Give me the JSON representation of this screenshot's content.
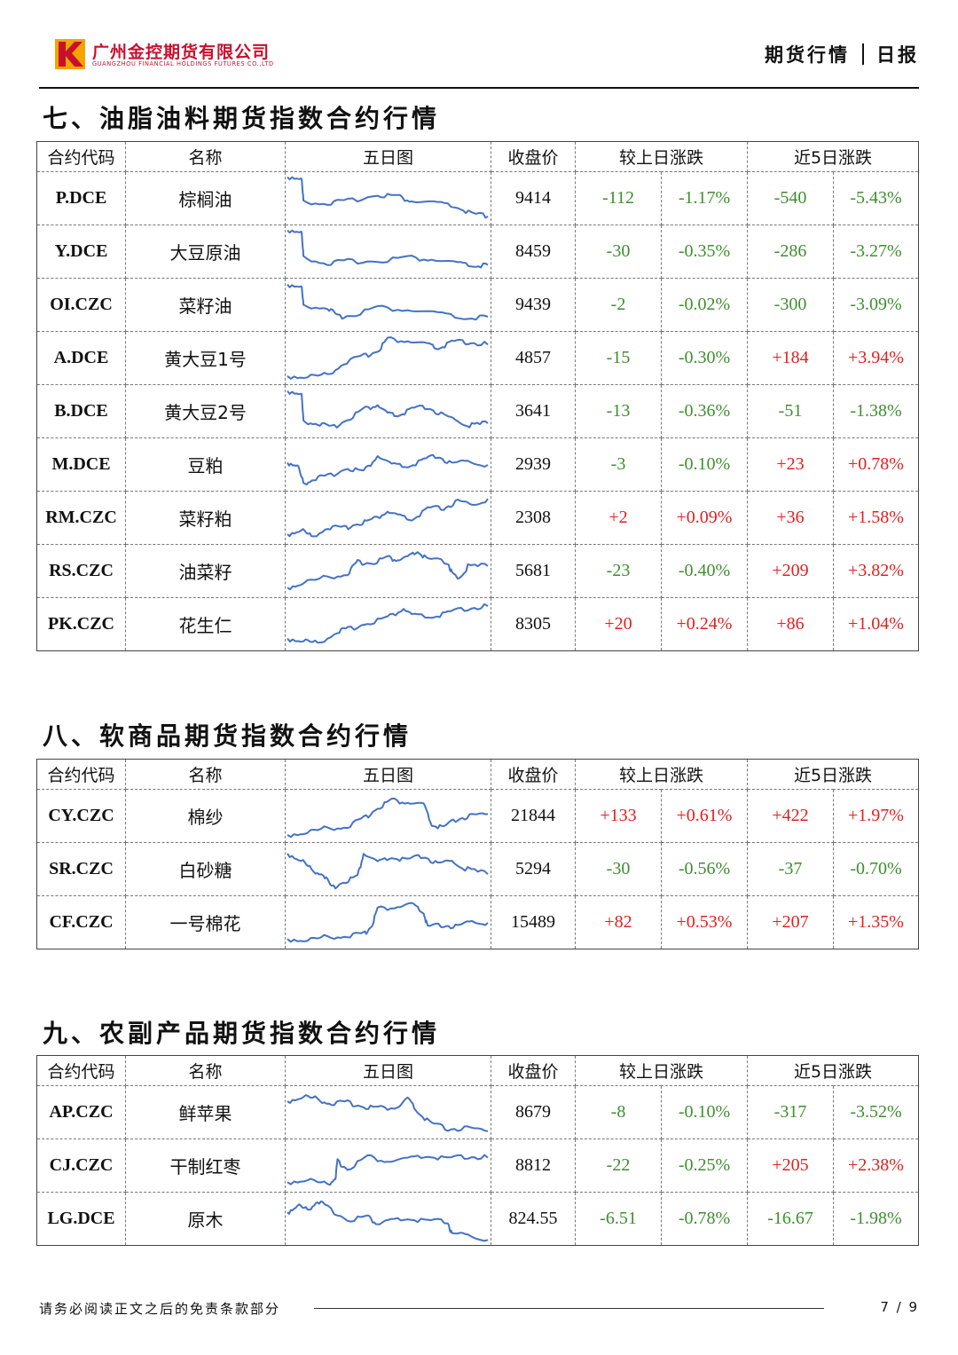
{
  "header": {
    "logo_letter": "K",
    "company_cn": "广州金控期货有限公司",
    "company_en": "GUANGZHOU FINANCIAL HOLDINGS FUTURES CO.,LTD",
    "doc_type": "期货行情",
    "doc_sub": "日报",
    "brand_color": "#c8102e"
  },
  "columns": {
    "code": "合约代码",
    "name": "名称",
    "chart": "五日图",
    "close": "收盘价",
    "daily": "较上日涨跌",
    "five_day": "近5日涨跌"
  },
  "colors": {
    "up": "#e02020",
    "down": "#3e8e2e",
    "sparkline": "#4472c4"
  },
  "sections": [
    {
      "title": "七、油脂油料期货指数合约行情",
      "rows": [
        {
          "code": "P.DCE",
          "name": "棕榈油",
          "close": "9414",
          "d_chg": "-112",
          "d_pct": "-1.17%",
          "w_chg": "-540",
          "w_pct": "-5.43%"
        },
        {
          "code": "Y.DCE",
          "name": "大豆原油",
          "close": "8459",
          "d_chg": "-30",
          "d_pct": "-0.35%",
          "w_chg": "-286",
          "w_pct": "-3.27%"
        },
        {
          "code": "OI.CZC",
          "name": "菜籽油",
          "close": "9439",
          "d_chg": "-2",
          "d_pct": "-0.02%",
          "w_chg": "-300",
          "w_pct": "-3.09%"
        },
        {
          "code": "A.DCE",
          "name": "黄大豆1号",
          "close": "4857",
          "d_chg": "-15",
          "d_pct": "-0.30%",
          "w_chg": "+184",
          "w_pct": "+3.94%"
        },
        {
          "code": "B.DCE",
          "name": "黄大豆2号",
          "close": "3641",
          "d_chg": "-13",
          "d_pct": "-0.36%",
          "w_chg": "-51",
          "w_pct": "-1.38%"
        },
        {
          "code": "M.DCE",
          "name": "豆粕",
          "close": "2939",
          "d_chg": "-3",
          "d_pct": "-0.10%",
          "w_chg": "+23",
          "w_pct": "+0.78%"
        },
        {
          "code": "RM.CZC",
          "name": "菜籽粕",
          "close": "2308",
          "d_chg": "+2",
          "d_pct": "+0.09%",
          "w_chg": "+36",
          "w_pct": "+1.58%"
        },
        {
          "code": "RS.CZC",
          "name": "油菜籽",
          "close": "5681",
          "d_chg": "-23",
          "d_pct": "-0.40%",
          "w_chg": "+209",
          "w_pct": "+3.82%"
        },
        {
          "code": "PK.CZC",
          "name": "花生仁",
          "close": "8305",
          "d_chg": "+20",
          "d_pct": "+0.24%",
          "w_chg": "+86",
          "w_pct": "+1.04%"
        }
      ]
    },
    {
      "title": "八、软商品期货指数合约行情",
      "rows": [
        {
          "code": "CY.CZC",
          "name": "棉纱",
          "close": "21844",
          "d_chg": "+133",
          "d_pct": "+0.61%",
          "w_chg": "+422",
          "w_pct": "+1.97%"
        },
        {
          "code": "SR.CZC",
          "name": "白砂糖",
          "close": "5294",
          "d_chg": "-30",
          "d_pct": "-0.56%",
          "w_chg": "-37",
          "w_pct": "-0.70%"
        },
        {
          "code": "CF.CZC",
          "name": "一号棉花",
          "close": "15489",
          "d_chg": "+82",
          "d_pct": "+0.53%",
          "w_chg": "+207",
          "w_pct": "+1.35%"
        }
      ]
    },
    {
      "title": "九、农副产品期货指数合约行情",
      "rows": [
        {
          "code": "AP.CZC",
          "name": "鲜苹果",
          "close": "8679",
          "d_chg": "-8",
          "d_pct": "-0.10%",
          "w_chg": "-317",
          "w_pct": "-3.52%"
        },
        {
          "code": "CJ.CZC",
          "name": "干制红枣",
          "close": "8812",
          "d_chg": "-22",
          "d_pct": "-0.25%",
          "w_chg": "+205",
          "w_pct": "+2.38%"
        },
        {
          "code": "LG.DCE",
          "name": "原木",
          "close": "824.55",
          "d_chg": "-6.51",
          "d_pct": "-0.78%",
          "w_chg": "-16.67",
          "w_pct": "-1.98%"
        }
      ]
    }
  ],
  "footer": {
    "notice": "请务必阅读正文之后的免责条款部分",
    "page": "7 / 9"
  }
}
